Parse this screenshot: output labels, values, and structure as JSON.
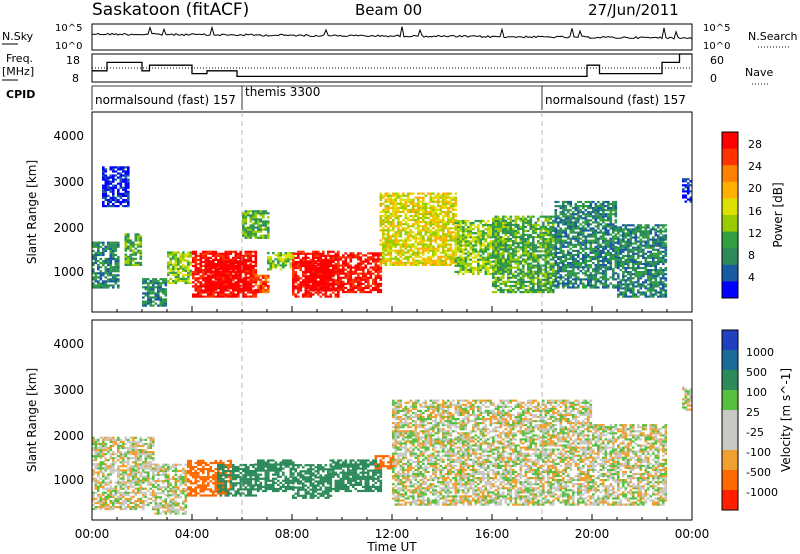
{
  "header": {
    "station": "Saskatoon (fitACF)",
    "beam": "Beam 00",
    "date": "27/Jun/2011"
  },
  "nsky_panel": {
    "left_label": "N.Sky",
    "right_label": "N.Search",
    "tick_top": "10^5",
    "tick_bottom": "10^0"
  },
  "freq_panel": {
    "left_label_1": "Freq.",
    "left_label_2": "[MHz]",
    "right_label": "Nave",
    "left_ticks": [
      "18",
      "8"
    ],
    "right_ticks": [
      "60",
      "0"
    ]
  },
  "cpid": {
    "label": "CPID",
    "segments": [
      {
        "name": "normalsound (fast) 157",
        "start_hour": 0
      },
      {
        "name": "themis 3300",
        "start_hour": 6
      },
      {
        "name": "normalsound (fast) 157",
        "start_hour": 18
      }
    ]
  },
  "x_axis": {
    "title": "Time UT",
    "ticks": [
      "00:00",
      "04:00",
      "08:00",
      "12:00",
      "16:00",
      "20:00",
      "00:00"
    ]
  },
  "power_panel": {
    "ylabel": "Slant Range [km]",
    "yticks": [
      "4000",
      "3000",
      "2000",
      "1000"
    ],
    "colorbar_label": "Power [dB]",
    "colorbar_ticks": [
      "28",
      "24",
      "20",
      "16",
      "12",
      "8",
      "4"
    ],
    "colors": [
      "#ff0000",
      "#ff3300",
      "#ff7f00",
      "#ffb000",
      "#dde000",
      "#98cc00",
      "#30a040",
      "#2d8a5a",
      "#1a5aa0",
      "#0000ff"
    ]
  },
  "velocity_panel": {
    "ylabel": "Slant Range [km]",
    "yticks": [
      "4000",
      "3000",
      "2000",
      "1000"
    ],
    "colorbar_label": "Velocity [m s^-1]",
    "colorbar_ticks": [
      "1000",
      "500",
      "100",
      "25",
      "-25",
      "-100",
      "-500",
      "-1000"
    ],
    "colors": [
      "#2040c0",
      "#1a6a9a",
      "#2d8a5a",
      "#58c040",
      "#c8c8c4",
      "#c8c8c4",
      "#f0a030",
      "#ff6a00",
      "#ff2000"
    ]
  },
  "chart_data": {
    "type": "heatmap",
    "title": "Saskatoon (fitACF)  Beam 00  27/Jun/2011",
    "xlabel": "Time UT",
    "ylabel": "Slant Range [km]",
    "x_range_hours": [
      0,
      24
    ],
    "y_range_km": [
      180,
      4600
    ],
    "nave_constant": 60,
    "freq_segments_mhz": [
      {
        "start": 0.0,
        "end": 0.6,
        "value": 12
      },
      {
        "start": 0.6,
        "end": 2.0,
        "value": 15
      },
      {
        "start": 2.0,
        "end": 2.3,
        "value": 12
      },
      {
        "start": 2.3,
        "end": 4.0,
        "value": 14
      },
      {
        "start": 4.0,
        "end": 4.6,
        "value": 11
      },
      {
        "start": 4.6,
        "end": 5.8,
        "value": 12
      },
      {
        "start": 5.8,
        "end": 19.8,
        "value": 10
      },
      {
        "start": 19.8,
        "end": 20.3,
        "value": 14
      },
      {
        "start": 20.3,
        "end": 22.8,
        "value": 11
      },
      {
        "start": 22.8,
        "end": 23.5,
        "value": 15
      },
      {
        "start": 23.5,
        "end": 24.0,
        "value": 18
      }
    ],
    "power_regions": [
      {
        "t0": 0.0,
        "t1": 1.0,
        "r0": 700,
        "r1": 1700,
        "level": 2
      },
      {
        "t0": 0.4,
        "t1": 1.5,
        "r0": 2500,
        "r1": 3400,
        "level": 0
      },
      {
        "t0": 1.3,
        "t1": 2.0,
        "r0": 1200,
        "r1": 1900,
        "level": 3
      },
      {
        "t0": 2.0,
        "t1": 3.0,
        "r0": 300,
        "r1": 900,
        "level": 2
      },
      {
        "t0": 3.0,
        "t1": 4.0,
        "r0": 800,
        "r1": 1500,
        "level": 4
      },
      {
        "t0": 4.0,
        "t1": 6.5,
        "r0": 500,
        "r1": 1500,
        "level": 9
      },
      {
        "t0": 4.5,
        "t1": 6.3,
        "r0": 650,
        "r1": 1300,
        "level": 10
      },
      {
        "t0": 6.5,
        "t1": 7.0,
        "r0": 600,
        "r1": 1000,
        "level": 8
      },
      {
        "t0": 7.0,
        "t1": 8.0,
        "r0": 1100,
        "r1": 1500,
        "level": 4
      },
      {
        "t0": 8.0,
        "t1": 9.8,
        "r0": 500,
        "r1": 1500,
        "level": 9
      },
      {
        "t0": 8.5,
        "t1": 9.6,
        "r0": 650,
        "r1": 1300,
        "level": 10
      },
      {
        "t0": 9.8,
        "t1": 11.5,
        "r0": 600,
        "r1": 1500,
        "level": 9
      },
      {
        "t0": 6.0,
        "t1": 7.0,
        "r0": 1800,
        "r1": 2400,
        "level": 3
      },
      {
        "t0": 11.5,
        "t1": 14.5,
        "r0": 1200,
        "r1": 2800,
        "level": 5
      },
      {
        "t0": 14.5,
        "t1": 16.5,
        "r0": 1000,
        "r1": 2200,
        "level": 4
      },
      {
        "t0": 16.0,
        "t1": 18.5,
        "r0": 600,
        "r1": 2300,
        "level": 3
      },
      {
        "t0": 18.5,
        "t1": 21.0,
        "r0": 700,
        "r1": 2600,
        "level": 2
      },
      {
        "t0": 21.0,
        "t1": 23.0,
        "r0": 500,
        "r1": 2100,
        "level": 2
      },
      {
        "t0": 23.6,
        "t1": 24.0,
        "r0": 2600,
        "r1": 3100,
        "level": 0
      }
    ],
    "velocity_regions": [
      {
        "t0": 0.0,
        "t1": 2.5,
        "r0": 400,
        "r1": 2000,
        "v": 0
      },
      {
        "t0": 2.5,
        "t1": 3.8,
        "r0": 300,
        "r1": 1400,
        "v": 0
      },
      {
        "t0": 3.8,
        "t1": 5.5,
        "r0": 700,
        "r1": 1500,
        "v": -200
      },
      {
        "t0": 5.0,
        "t1": 6.5,
        "r0": 700,
        "r1": 1400,
        "v": 150
      },
      {
        "t0": 6.5,
        "t1": 8.0,
        "r0": 800,
        "r1": 1500,
        "v": 200
      },
      {
        "t0": 8.0,
        "t1": 9.5,
        "r0": 650,
        "r1": 1400,
        "v": 200
      },
      {
        "t0": 9.5,
        "t1": 11.5,
        "r0": 800,
        "r1": 1500,
        "v": 150
      },
      {
        "t0": 11.3,
        "t1": 12.0,
        "r0": 1300,
        "r1": 1600,
        "v": -300
      },
      {
        "t0": 12.0,
        "t1": 20.0,
        "r0": 500,
        "r1": 2800,
        "v": 0
      },
      {
        "t0": 20.0,
        "t1": 23.0,
        "r0": 500,
        "r1": 2300,
        "v": 0
      },
      {
        "t0": 23.6,
        "t1": 24.0,
        "r0": 2600,
        "r1": 3100,
        "v": 0
      }
    ]
  }
}
